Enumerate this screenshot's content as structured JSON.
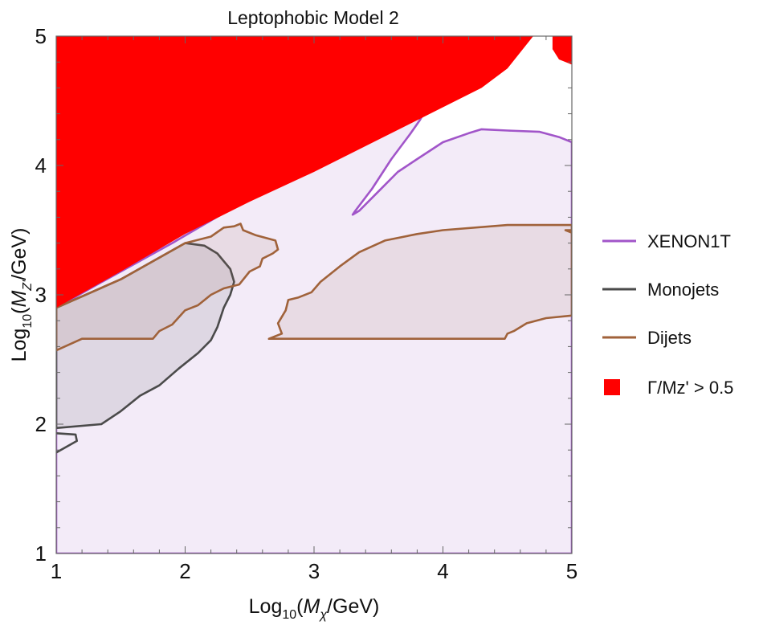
{
  "chart_data": {
    "type": "area",
    "title": "Leptophobic Model 2",
    "xlabel": {
      "prefix": "Log",
      "sub": "10",
      "open": "(",
      "var": "M",
      "var_sub": "χ",
      "unit": "/GeV)"
    },
    "ylabel": {
      "prefix": "Log",
      "sub": "10",
      "open": "(",
      "var": "M",
      "var_sub": "Z'",
      "unit": "/GeV)"
    },
    "xlim": [
      1,
      5
    ],
    "ylim": [
      1,
      5
    ],
    "xticks": [
      {
        "value": 1,
        "label": "1"
      },
      {
        "value": 2,
        "label": "2"
      },
      {
        "value": 3,
        "label": "3"
      },
      {
        "value": 4,
        "label": "4"
      },
      {
        "value": 5,
        "label": "5"
      }
    ],
    "yticks": [
      {
        "value": 1,
        "label": "1"
      },
      {
        "value": 2,
        "label": "2"
      },
      {
        "value": 3,
        "label": "3"
      },
      {
        "value": 4,
        "label": "4"
      },
      {
        "value": 5,
        "label": "5"
      }
    ],
    "legend_position": "right",
    "grid": false,
    "series": [
      {
        "name": "XENON1T",
        "kind": "exclusion-contour",
        "stroke": "#a155c9",
        "fill": "#f3ebf8",
        "points": [
          [
            1.0,
            1.0
          ],
          [
            5.0,
            1.0
          ],
          [
            5.0,
            4.18
          ],
          [
            4.9,
            4.22
          ],
          [
            4.75,
            4.26
          ],
          [
            4.5,
            4.27
          ],
          [
            4.3,
            4.28
          ],
          [
            4.2,
            4.25
          ],
          [
            4.0,
            4.18
          ],
          [
            3.8,
            4.05
          ],
          [
            3.65,
            3.95
          ],
          [
            3.5,
            3.8
          ],
          [
            3.35,
            3.65
          ],
          [
            3.3,
            3.62
          ],
          [
            3.32,
            3.65
          ],
          [
            3.45,
            3.82
          ],
          [
            3.6,
            4.05
          ],
          [
            3.75,
            4.25
          ],
          [
            3.82,
            4.35
          ],
          [
            3.88,
            4.45
          ],
          [
            3.2,
            4.08
          ],
          [
            2.5,
            3.75
          ],
          [
            1.9,
            3.4
          ],
          [
            1.3,
            3.07
          ],
          [
            1.0,
            2.9
          ],
          [
            1.0,
            1.0
          ]
        ]
      },
      {
        "name": "Monojets",
        "kind": "exclusion-contour",
        "stroke": "#4a4a4a",
        "fill": "rgba(110,110,120,0.16)",
        "points": [
          [
            1.0,
            1.97
          ],
          [
            1.35,
            2.0
          ],
          [
            1.5,
            2.1
          ],
          [
            1.65,
            2.22
          ],
          [
            1.8,
            2.3
          ],
          [
            1.95,
            2.43
          ],
          [
            2.1,
            2.55
          ],
          [
            2.2,
            2.65
          ],
          [
            2.25,
            2.75
          ],
          [
            2.3,
            2.9
          ],
          [
            2.35,
            3.0
          ],
          [
            2.38,
            3.1
          ],
          [
            2.35,
            3.2
          ],
          [
            2.25,
            3.32
          ],
          [
            2.15,
            3.38
          ],
          [
            2.0,
            3.4
          ],
          [
            1.5,
            3.12
          ],
          [
            1.0,
            2.9
          ]
        ],
        "extra_paths": [
          [
            [
              1.0,
              1.93
            ],
            [
              1.15,
              1.92
            ],
            [
              1.16,
              1.87
            ],
            [
              1.0,
              1.78
            ]
          ]
        ]
      },
      {
        "name": "Dijets",
        "kind": "exclusion-contour",
        "stroke": "#a0623a",
        "fill": "rgba(160,110,90,0.12)",
        "points": [
          [
            1.0,
            2.57
          ],
          [
            1.2,
            2.66
          ],
          [
            1.75,
            2.66
          ],
          [
            1.8,
            2.72
          ],
          [
            1.9,
            2.77
          ],
          [
            2.0,
            2.88
          ],
          [
            2.1,
            2.92
          ],
          [
            2.2,
            3.0
          ],
          [
            2.3,
            3.05
          ],
          [
            2.42,
            3.08
          ],
          [
            2.5,
            3.18
          ],
          [
            2.58,
            3.22
          ],
          [
            2.6,
            3.28
          ],
          [
            2.68,
            3.32
          ],
          [
            2.72,
            3.35
          ],
          [
            2.7,
            3.42
          ],
          [
            2.55,
            3.46
          ],
          [
            2.45,
            3.5
          ],
          [
            2.43,
            3.55
          ],
          [
            2.38,
            3.53
          ],
          [
            2.3,
            3.52
          ],
          [
            2.2,
            3.45
          ],
          [
            2.0,
            3.4
          ],
          [
            1.5,
            3.12
          ],
          [
            1.0,
            2.9
          ]
        ],
        "extra_paths": [
          [
            [
              2.65,
              2.66
            ],
            [
              2.75,
              2.7
            ],
            [
              2.72,
              2.78
            ],
            [
              2.78,
              2.88
            ],
            [
              2.8,
              2.96
            ],
            [
              2.88,
              2.98
            ],
            [
              2.98,
              3.02
            ],
            [
              3.05,
              3.1
            ],
            [
              3.2,
              3.22
            ],
            [
              3.35,
              3.33
            ],
            [
              3.55,
              3.42
            ],
            [
              3.8,
              3.47
            ],
            [
              4.0,
              3.5
            ],
            [
              4.5,
              3.54
            ],
            [
              5.0,
              3.54
            ],
            [
              5.0,
              3.5
            ],
            [
              4.95,
              3.5
            ],
            [
              5.0,
              3.48
            ],
            [
              5.0,
              2.84
            ],
            [
              4.8,
              2.82
            ],
            [
              4.65,
              2.78
            ],
            [
              4.55,
              2.72
            ],
            [
              4.5,
              2.7
            ],
            [
              4.48,
              2.66
            ],
            [
              3.5,
              2.66
            ],
            [
              2.65,
              2.66
            ]
          ]
        ]
      },
      {
        "name": "Γ/Mz' > 0.5",
        "kind": "filled-region",
        "stroke": "none",
        "fill": "#ff0000",
        "points": [
          [
            1.0,
            5.0
          ],
          [
            4.7,
            5.0
          ],
          [
            4.5,
            4.75
          ],
          [
            4.3,
            4.6
          ],
          [
            4.0,
            4.45
          ],
          [
            3.5,
            4.2
          ],
          [
            3.0,
            3.95
          ],
          [
            2.5,
            3.72
          ],
          [
            2.0,
            3.47
          ],
          [
            1.5,
            3.18
          ],
          [
            1.0,
            2.9
          ]
        ],
        "extra_paths": [
          [
            [
              4.85,
              5.0
            ],
            [
              5.0,
              5.0
            ],
            [
              5.0,
              4.78
            ],
            [
              4.9,
              4.82
            ],
            [
              4.85,
              4.9
            ]
          ]
        ]
      }
    ]
  }
}
